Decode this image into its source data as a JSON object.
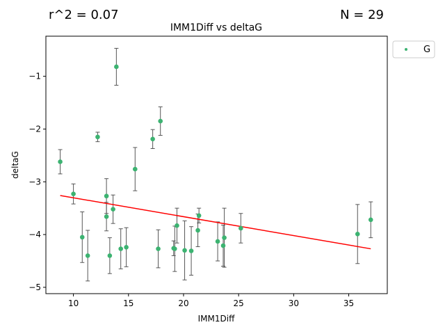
{
  "header": {
    "r2_text": "r^2 = 0.07",
    "n_text": "N = 29"
  },
  "chart_data": {
    "type": "scatter",
    "title": "IMM1Diff vs deltaG",
    "xlabel": "IMM1Diff",
    "ylabel": "deltaG",
    "xlim": [
      7.5,
      38.5
    ],
    "ylim": [
      -5.12,
      -0.24
    ],
    "xticks": [
      10,
      15,
      20,
      25,
      30,
      35
    ],
    "xtick_labels": [
      "10",
      "15",
      "20",
      "25",
      "30",
      "35"
    ],
    "yticks": [
      -1,
      -2,
      -3,
      -4,
      -5
    ],
    "ytick_labels": [
      "−1",
      "−2",
      "−3",
      "−4",
      "−5"
    ],
    "grid": false,
    "legend_position": "outside-top-right",
    "colors": {
      "points": "#3cb371",
      "errorbars": "#555555",
      "fit": "#ff0000"
    },
    "series": [
      {
        "name": "G",
        "points": [
          {
            "x": 8.8,
            "y": -2.62,
            "err": 0.23
          },
          {
            "x": 10.0,
            "y": -3.23,
            "err": 0.19
          },
          {
            "x": 10.8,
            "y": -4.05,
            "err": 0.48
          },
          {
            "x": 11.3,
            "y": -4.4,
            "err": 0.48
          },
          {
            "x": 12.2,
            "y": -2.15,
            "err": 0.09
          },
          {
            "x": 13.0,
            "y": -3.27,
            "err": 0.33
          },
          {
            "x": 13.0,
            "y": -3.66,
            "err": 0.27
          },
          {
            "x": 13.3,
            "y": -4.4,
            "err": 0.34
          },
          {
            "x": 13.6,
            "y": -3.52,
            "err": 0.27
          },
          {
            "x": 13.9,
            "y": -0.82,
            "err": 0.35
          },
          {
            "x": 14.3,
            "y": -4.27,
            "err": 0.38
          },
          {
            "x": 14.8,
            "y": -4.24,
            "err": 0.37
          },
          {
            "x": 15.6,
            "y": -2.76,
            "err": 0.41
          },
          {
            "x": 17.2,
            "y": -2.19,
            "err": 0.18
          },
          {
            "x": 17.7,
            "y": -4.27,
            "err": 0.36
          },
          {
            "x": 17.9,
            "y": -1.85,
            "err": 0.27
          },
          {
            "x": 19.1,
            "y": -4.26,
            "err": 0.14
          },
          {
            "x": 19.2,
            "y": -4.27,
            "err": 0.43
          },
          {
            "x": 19.4,
            "y": -3.83,
            "err": 0.33
          },
          {
            "x": 20.1,
            "y": -4.3,
            "err": 0.56
          },
          {
            "x": 20.7,
            "y": -4.31,
            "err": 0.46
          },
          {
            "x": 21.3,
            "y": -3.92,
            "err": 0.31
          },
          {
            "x": 21.4,
            "y": -3.64,
            "err": 0.14
          },
          {
            "x": 23.1,
            "y": -4.13,
            "err": 0.37
          },
          {
            "x": 23.6,
            "y": -4.21,
            "err": 0.39
          },
          {
            "x": 23.7,
            "y": -4.06,
            "err": 0.56
          },
          {
            "x": 25.2,
            "y": -3.88,
            "err": 0.28
          },
          {
            "x": 35.8,
            "y": -3.99,
            "err": 0.56
          },
          {
            "x": 37.0,
            "y": -3.72,
            "err": 0.34
          }
        ]
      }
    ],
    "fit_line": {
      "x": [
        8.8,
        37.0
      ],
      "y": [
        -3.26,
        -4.27
      ]
    }
  }
}
